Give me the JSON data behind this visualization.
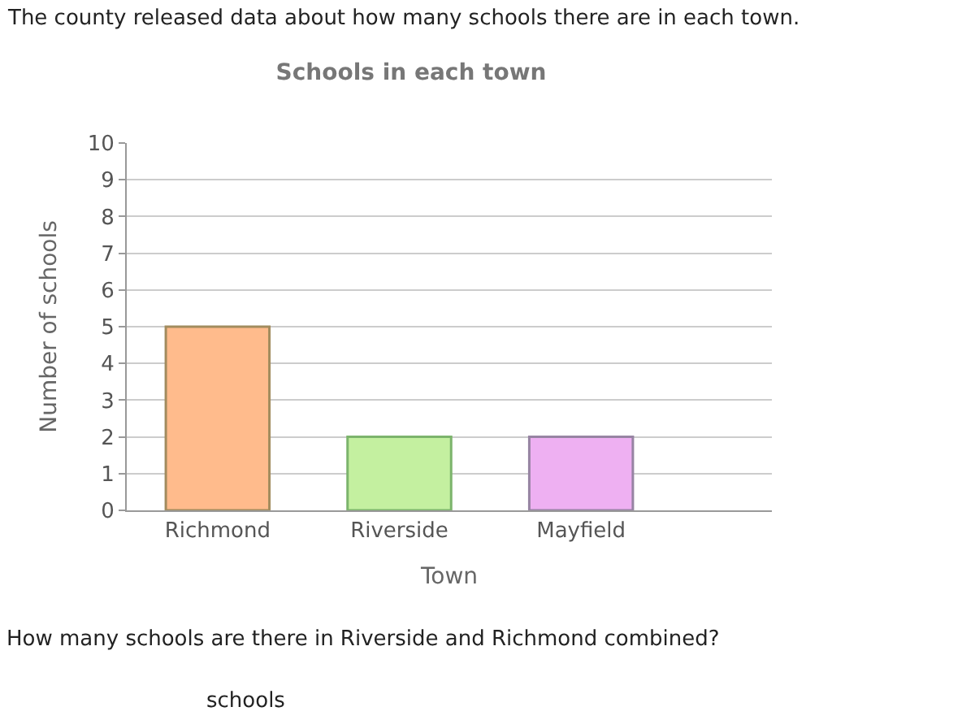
{
  "chart_data": {
    "type": "bar",
    "title": "Schools in each town",
    "xlabel": "Town",
    "ylabel": "Number of schools",
    "categories": [
      "Richmond",
      "Riverside",
      "Mayfield"
    ],
    "values": [
      5,
      2,
      2
    ],
    "colors": [
      "#ffbb8c",
      "#c4f0a0",
      "#eeb0f2"
    ],
    "ylim": [
      0,
      10
    ],
    "yticks": [
      0,
      1,
      2,
      3,
      4,
      5,
      6,
      7,
      8,
      9,
      10
    ],
    "grid": "y",
    "annotations": [
      "The county released data about how many schools there are in each town.",
      "How many schools are there in Riverside and Richmond combined?",
      "schools"
    ]
  }
}
